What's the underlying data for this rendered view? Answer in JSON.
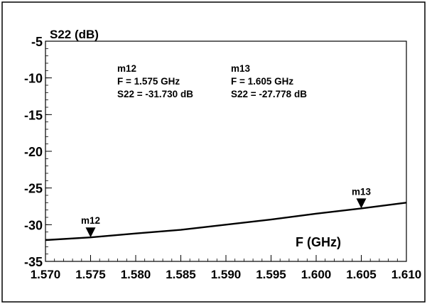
{
  "chart_data": {
    "type": "line",
    "title": "",
    "xlabel": "F (GHz)",
    "ylabel": "S22 (dB)",
    "xlim": [
      1.57,
      1.61
    ],
    "ylim": [
      -35,
      -5
    ],
    "x_ticks": [
      "1.570",
      "1.575",
      "1.580",
      "1.585",
      "1.590",
      "1.595",
      "1.600",
      "1.605",
      "1.610"
    ],
    "y_ticks": [
      "-5",
      "-10",
      "-15",
      "-20",
      "-25",
      "-30",
      "-35"
    ],
    "x_tick_values": [
      1.57,
      1.575,
      1.58,
      1.585,
      1.59,
      1.595,
      1.6,
      1.605,
      1.61
    ],
    "y_tick_values": [
      -5,
      -10,
      -15,
      -20,
      -25,
      -30,
      -35
    ],
    "grid": false,
    "series": [
      {
        "x": [
          1.57,
          1.575,
          1.58,
          1.585,
          1.59,
          1.595,
          1.6,
          1.605,
          1.61
        ],
        "y": [
          -32.1,
          -31.73,
          -31.2,
          -30.7,
          -30.0,
          -29.3,
          -28.5,
          -27.778,
          -27.0
        ],
        "color": "#000000"
      }
    ],
    "markers": [
      {
        "label": "m12",
        "x": 1.575,
        "y": -31.73
      },
      {
        "label": "m13",
        "x": 1.605,
        "y": -27.778
      }
    ],
    "annotations": [
      {
        "name": "m12",
        "line1": "m12",
        "line2": "F = 1.575 GHz",
        "line3": "S22 = -31.730 dB"
      },
      {
        "name": "m13",
        "line1": "m13",
        "line2": "F = 1.605 GHz",
        "line3": "S22 = -27.778 dB"
      }
    ]
  }
}
